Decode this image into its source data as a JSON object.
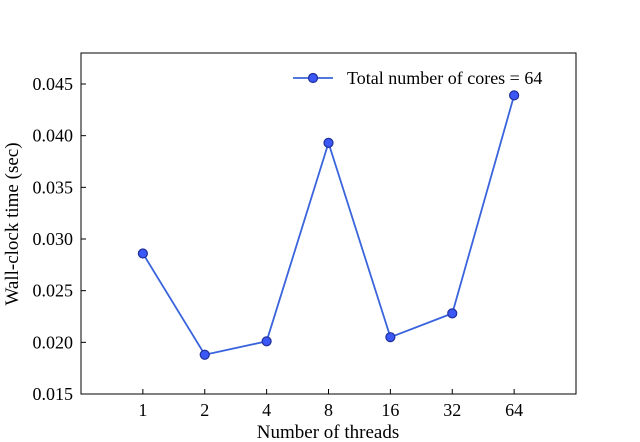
{
  "chart_data": {
    "type": "line",
    "xlabel": "Number of threads",
    "ylabel": "Wall-clock time (sec)",
    "categories": [
      "1",
      "2",
      "4",
      "8",
      "16",
      "32",
      "64"
    ],
    "series": [
      {
        "name": "Total number of cores = 64",
        "color": "#3a64dc",
        "marker_color": "#3b57f5",
        "values": [
          0.0286,
          0.0188,
          0.0201,
          0.0393,
          0.0205,
          0.0228,
          0.0439
        ]
      }
    ],
    "yticks": [
      "0.015",
      "0.020",
      "0.025",
      "0.030",
      "0.035",
      "0.040",
      "0.045"
    ],
    "ylim": [
      0.015,
      0.048
    ],
    "grid": false,
    "legend_position": "top-right",
    "tick_direction": "in"
  }
}
